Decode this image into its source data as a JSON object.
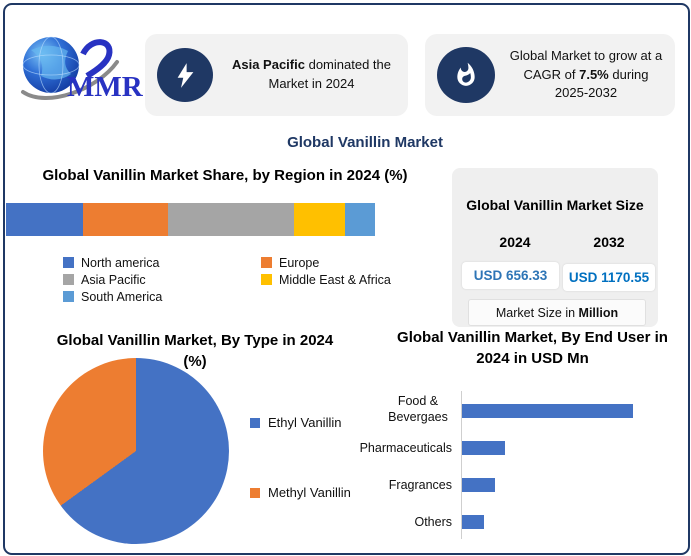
{
  "brand": {
    "name": "MMR"
  },
  "header": {
    "highlight1": {
      "bold": "Asia Pacific",
      "rest": " dominated the Market in 2024"
    },
    "highlight2": {
      "pre": "Global Market to grow at a CAGR of ",
      "bold": "7.5%",
      "post": " during 2025-2032"
    }
  },
  "page_title": "Global Vanillin Market",
  "market_size_panel": {
    "title": "Global Vanillin Market Size",
    "periods": [
      {
        "year": "2024",
        "value": "USD 656.33",
        "color": "#2E75B6"
      },
      {
        "year": "2032",
        "value": "USD 1170.55",
        "color": "#0070C0"
      }
    ],
    "footnote_pre": "Market Size in ",
    "footnote_bold": "Million"
  },
  "chart_data": [
    {
      "type": "bar",
      "subtype": "stacked-horizontal-single",
      "title": "Global Vanillin Market Share, by Region in 2024 (%)",
      "unit": "%",
      "legend_position": "bottom",
      "series": [
        {
          "name": "North america",
          "value": 21,
          "color": "#4472C4"
        },
        {
          "name": "Europe",
          "value": 23,
          "color": "#ED7D31"
        },
        {
          "name": "Asia Pacific",
          "value": 34,
          "color": "#A5A5A5"
        },
        {
          "name": "Middle East & Africa",
          "value": 14,
          "color": "#FFC000"
        },
        {
          "name": "South America",
          "value": 8,
          "color": "#5B9BD5"
        }
      ]
    },
    {
      "type": "pie",
      "title": "Global Vanillin Market, By Type in 2024 (%)",
      "title_line1": "Global Vanillin Market, By Type in 2024",
      "title_line2": "(%)",
      "labels": [
        "Ethyl Vanillin",
        "Methyl Vanillin"
      ],
      "values": [
        65,
        35
      ],
      "colors": [
        "#4472C4",
        "#ED7D31"
      ],
      "start_angle_deg": 0,
      "legend_position": "right"
    },
    {
      "type": "bar",
      "subtype": "horizontal",
      "title": "Global Vanillin Market, By End User in 2024 in USD Mn",
      "title_line1": "Global Vanillin Market, By End User in",
      "title_line2": "2024 in USD Mn",
      "categories": [
        "Food & Bevergaes",
        "Pharmaceuticals",
        "Fragrances",
        "Others"
      ],
      "values": [
        340,
        85,
        66,
        44
      ],
      "bar_color": "#4472C4",
      "xlim_estimated": [
        0,
        380
      ],
      "grid": false
    }
  ],
  "colors": {
    "border": "#1F3864",
    "accent_navy": "#1F3864",
    "callout_bg": "#F2F2F2",
    "panel_bg": "#EFEFEF"
  }
}
